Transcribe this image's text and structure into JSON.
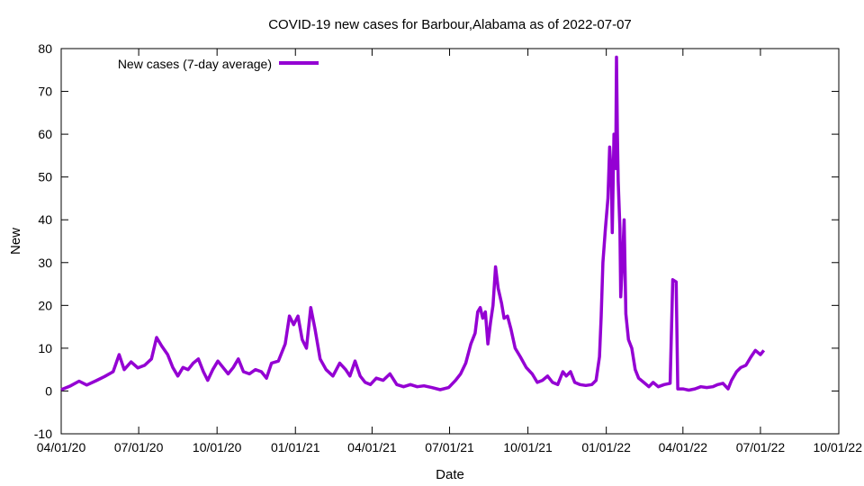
{
  "chart_data": {
    "type": "line",
    "title": "COVID-19 new cases for Barbour,Alabama as of 2022-07-07",
    "xlabel": "Date",
    "ylabel": "New",
    "ylim": [
      -10,
      80
    ],
    "yticks": [
      -10,
      0,
      10,
      20,
      30,
      40,
      50,
      60,
      70,
      80
    ],
    "xlim": [
      "2020-04-01",
      "2022-10-01"
    ],
    "xticks": [
      {
        "date": "2020-04-01",
        "label": "04/01/20"
      },
      {
        "date": "2020-07-01",
        "label": "07/01/20"
      },
      {
        "date": "2020-10-01",
        "label": "10/01/20"
      },
      {
        "date": "2021-01-01",
        "label": "01/01/21"
      },
      {
        "date": "2021-04-01",
        "label": "04/01/21"
      },
      {
        "date": "2021-07-01",
        "label": "07/01/21"
      },
      {
        "date": "2021-10-01",
        "label": "10/01/21"
      },
      {
        "date": "2022-01-01",
        "label": "01/01/22"
      },
      {
        "date": "2022-04-01",
        "label": "04/01/22"
      },
      {
        "date": "2022-07-01",
        "label": "07/01/22"
      },
      {
        "date": "2022-10-01",
        "label": "10/01/22"
      }
    ],
    "grid": false,
    "legend_position": "top-left",
    "series": [
      {
        "name": "New cases (7-day average)",
        "color": "#9400d3",
        "points": [
          [
            "2020-04-01",
            0.3
          ],
          [
            "2020-04-12",
            1.2
          ],
          [
            "2020-04-22",
            2.3
          ],
          [
            "2020-05-01",
            1.4
          ],
          [
            "2020-05-12",
            2.4
          ],
          [
            "2020-05-22",
            3.4
          ],
          [
            "2020-06-01",
            4.5
          ],
          [
            "2020-06-08",
            8.5
          ],
          [
            "2020-06-14",
            5.0
          ],
          [
            "2020-06-22",
            6.8
          ],
          [
            "2020-06-30",
            5.4
          ],
          [
            "2020-07-08",
            6.0
          ],
          [
            "2020-07-16",
            7.5
          ],
          [
            "2020-07-22",
            12.5
          ],
          [
            "2020-07-28",
            10.5
          ],
          [
            "2020-08-04",
            8.5
          ],
          [
            "2020-08-10",
            5.5
          ],
          [
            "2020-08-16",
            3.5
          ],
          [
            "2020-08-22",
            5.5
          ],
          [
            "2020-08-28",
            5.0
          ],
          [
            "2020-09-03",
            6.5
          ],
          [
            "2020-09-09",
            7.5
          ],
          [
            "2020-09-15",
            4.5
          ],
          [
            "2020-09-20",
            2.5
          ],
          [
            "2020-09-26",
            5.0
          ],
          [
            "2020-10-02",
            7.0
          ],
          [
            "2020-10-08",
            5.5
          ],
          [
            "2020-10-14",
            4.0
          ],
          [
            "2020-10-20",
            5.5
          ],
          [
            "2020-10-26",
            7.5
          ],
          [
            "2020-11-01",
            4.5
          ],
          [
            "2020-11-08",
            4.0
          ],
          [
            "2020-11-15",
            5.0
          ],
          [
            "2020-11-22",
            4.5
          ],
          [
            "2020-11-28",
            3.0
          ],
          [
            "2020-12-04",
            6.5
          ],
          [
            "2020-12-12",
            7.0
          ],
          [
            "2020-12-20",
            11.0
          ],
          [
            "2020-12-25",
            17.5
          ],
          [
            "2020-12-30",
            15.5
          ],
          [
            "2021-01-04",
            17.5
          ],
          [
            "2021-01-09",
            12.0
          ],
          [
            "2021-01-14",
            10.0
          ],
          [
            "2021-01-19",
            19.5
          ],
          [
            "2021-01-24",
            14.5
          ],
          [
            "2021-01-30",
            7.5
          ],
          [
            "2021-02-06",
            5.0
          ],
          [
            "2021-02-14",
            3.5
          ],
          [
            "2021-02-22",
            6.5
          ],
          [
            "2021-03-01",
            5.0
          ],
          [
            "2021-03-06",
            3.5
          ],
          [
            "2021-03-12",
            7.0
          ],
          [
            "2021-03-18",
            3.5
          ],
          [
            "2021-03-24",
            2.0
          ],
          [
            "2021-03-30",
            1.5
          ],
          [
            "2021-04-06",
            3.0
          ],
          [
            "2021-04-14",
            2.5
          ],
          [
            "2021-04-22",
            4.0
          ],
          [
            "2021-04-30",
            1.5
          ],
          [
            "2021-05-08",
            1.0
          ],
          [
            "2021-05-16",
            1.5
          ],
          [
            "2021-05-24",
            1.0
          ],
          [
            "2021-06-01",
            1.2
          ],
          [
            "2021-06-10",
            0.8
          ],
          [
            "2021-06-20",
            0.3
          ],
          [
            "2021-06-30",
            0.8
          ],
          [
            "2021-07-08",
            2.5
          ],
          [
            "2021-07-14",
            4.0
          ],
          [
            "2021-07-20",
            6.5
          ],
          [
            "2021-07-26",
            11.0
          ],
          [
            "2021-07-31",
            13.5
          ],
          [
            "2021-08-03",
            18.5
          ],
          [
            "2021-08-06",
            19.5
          ],
          [
            "2021-08-09",
            17.0
          ],
          [
            "2021-08-12",
            18.5
          ],
          [
            "2021-08-15",
            11.0
          ],
          [
            "2021-08-18",
            16.0
          ],
          [
            "2021-08-21",
            20.0
          ],
          [
            "2021-08-24",
            29.0
          ],
          [
            "2021-08-27",
            24.0
          ],
          [
            "2021-08-31",
            20.5
          ],
          [
            "2021-09-03",
            17.0
          ],
          [
            "2021-09-07",
            17.5
          ],
          [
            "2021-09-11",
            14.5
          ],
          [
            "2021-09-16",
            10.0
          ],
          [
            "2021-09-22",
            8.0
          ],
          [
            "2021-09-29",
            5.5
          ],
          [
            "2021-10-06",
            4.0
          ],
          [
            "2021-10-12",
            2.0
          ],
          [
            "2021-10-18",
            2.5
          ],
          [
            "2021-10-24",
            3.5
          ],
          [
            "2021-10-30",
            2.0
          ],
          [
            "2021-11-05",
            1.5
          ],
          [
            "2021-11-11",
            4.5
          ],
          [
            "2021-11-15",
            3.5
          ],
          [
            "2021-11-20",
            4.5
          ],
          [
            "2021-11-25",
            2.0
          ],
          [
            "2021-12-01",
            1.5
          ],
          [
            "2021-12-08",
            1.3
          ],
          [
            "2021-12-15",
            1.5
          ],
          [
            "2021-12-20",
            2.5
          ],
          [
            "2021-12-24",
            8.0
          ],
          [
            "2021-12-26",
            17.5
          ],
          [
            "2021-12-28",
            30.0
          ],
          [
            "2021-12-31",
            38.0
          ],
          [
            "2022-01-03",
            45.0
          ],
          [
            "2022-01-05",
            57.0
          ],
          [
            "2022-01-07",
            50.0
          ],
          [
            "2022-01-08",
            37.0
          ],
          [
            "2022-01-10",
            60.0
          ],
          [
            "2022-01-12",
            52.0
          ],
          [
            "2022-01-13",
            78.0
          ],
          [
            "2022-01-14",
            60.0
          ],
          [
            "2022-01-15",
            49.0
          ],
          [
            "2022-01-17",
            38.0
          ],
          [
            "2022-01-18",
            22.0
          ],
          [
            "2022-01-20",
            30.0
          ],
          [
            "2022-01-22",
            40.0
          ],
          [
            "2022-01-24",
            18.0
          ],
          [
            "2022-01-27",
            12.0
          ],
          [
            "2022-01-31",
            10.0
          ],
          [
            "2022-02-04",
            5.0
          ],
          [
            "2022-02-08",
            3.0
          ],
          [
            "2022-02-14",
            2.0
          ],
          [
            "2022-02-20",
            1.0
          ],
          [
            "2022-02-25",
            2.0
          ],
          [
            "2022-03-03",
            1.0
          ],
          [
            "2022-03-10",
            1.5
          ],
          [
            "2022-03-17",
            1.8
          ],
          [
            "2022-03-20",
            26.0
          ],
          [
            "2022-03-24",
            25.5
          ],
          [
            "2022-03-26",
            0.5
          ],
          [
            "2022-04-01",
            0.5
          ],
          [
            "2022-04-08",
            0.2
          ],
          [
            "2022-04-15",
            0.5
          ],
          [
            "2022-04-22",
            1.0
          ],
          [
            "2022-04-29",
            0.8
          ],
          [
            "2022-05-06",
            1.0
          ],
          [
            "2022-05-12",
            1.5
          ],
          [
            "2022-05-18",
            1.8
          ],
          [
            "2022-05-24",
            0.5
          ],
          [
            "2022-05-28",
            2.5
          ],
          [
            "2022-06-03",
            4.5
          ],
          [
            "2022-06-08",
            5.5
          ],
          [
            "2022-06-14",
            6.0
          ],
          [
            "2022-06-20",
            8.0
          ],
          [
            "2022-06-25",
            9.5
          ],
          [
            "2022-07-01",
            8.5
          ],
          [
            "2022-07-05",
            9.5
          ]
        ]
      }
    ]
  }
}
